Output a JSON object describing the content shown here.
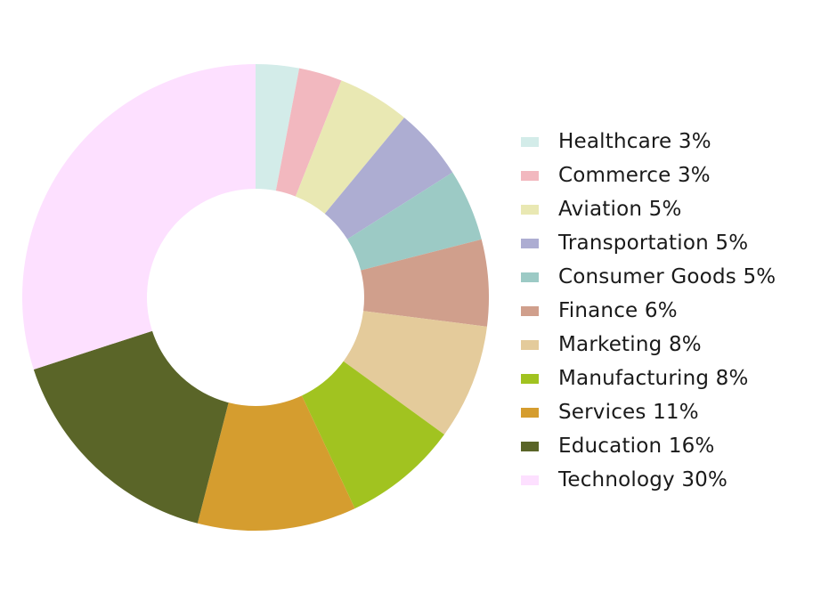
{
  "chart_data": {
    "type": "pie",
    "donut": true,
    "title": "",
    "legend_position": "right",
    "slices": [
      {
        "label": "Healthcare 3%",
        "value": 3,
        "color": "#d3ece9"
      },
      {
        "label": "Commerce 3%",
        "value": 3,
        "color": "#f2b8bf"
      },
      {
        "label": "Aviation 5%",
        "value": 5,
        "color": "#e9e8b3"
      },
      {
        "label": "Transportation 5%",
        "value": 5,
        "color": "#adadd2"
      },
      {
        "label": "Consumer Goods 5%",
        "value": 5,
        "color": "#9ccac5"
      },
      {
        "label": "Finance 6%",
        "value": 6,
        "color": "#d09f8c"
      },
      {
        "label": "Marketing 8%",
        "value": 8,
        "color": "#e4cb9b"
      },
      {
        "label": "Manufacturing 8%",
        "value": 8,
        "color": "#a1c320"
      },
      {
        "label": "Services 11%",
        "value": 11,
        "color": "#d59d2f"
      },
      {
        "label": "Education 16%",
        "value": 16,
        "color": "#5a6528"
      },
      {
        "label": "Technology 30%",
        "value": 30,
        "color": "#fde0ff"
      }
    ]
  }
}
